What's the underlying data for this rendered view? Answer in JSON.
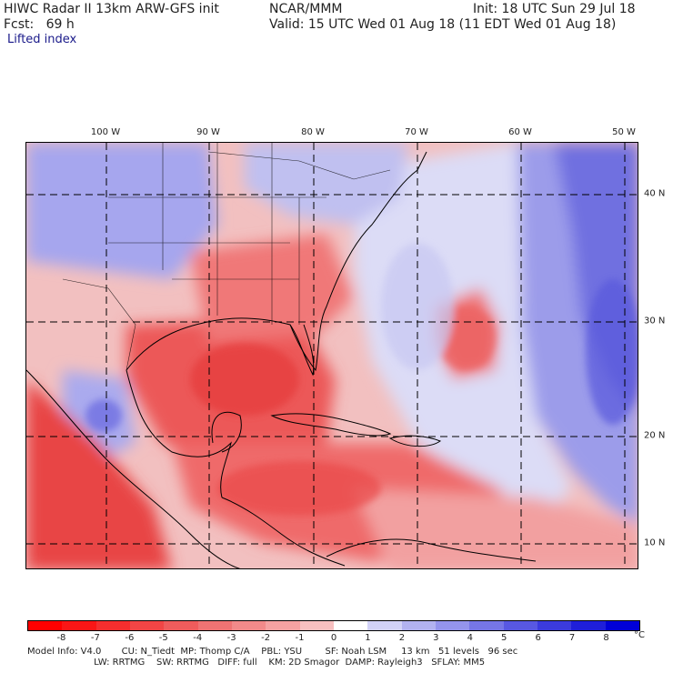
{
  "header": {
    "model_title": "HIWC Radar II 13km ARW-GFS init",
    "org": "NCAR/MMM",
    "init": "Init: 18 UTC Sun 29 Jul 18",
    "forecast": "Fcst:   69 h",
    "valid": "Valid: 15 UTC Wed 01 Aug 18 (11 EDT Wed 01 Aug 18)",
    "field": "Lifted index"
  },
  "map": {
    "lon_labels": [
      "100 W",
      "90 W",
      "80 W",
      "70 W",
      "60 W",
      "50 W"
    ],
    "lat_labels": [
      "40 N",
      "30 N",
      "20 N",
      "10 N"
    ]
  },
  "colorbar": {
    "ticks": [
      "-8",
      "-7",
      "-6",
      "-5",
      "-4",
      "-3",
      "-2",
      "-1",
      "0",
      "1",
      "2",
      "3",
      "4",
      "5",
      "6",
      "7",
      "8"
    ],
    "unit": "°C",
    "colors": [
      "#ff0000",
      "#fa1616",
      "#f52e2e",
      "#f24545",
      "#ef5c5c",
      "#ef7373",
      "#f28a8a",
      "#f5a2a2",
      "#f8c0c0",
      "#ffffff",
      "#d2d2f7",
      "#b2b2f0",
      "#9494ec",
      "#7676e6",
      "#5858e2",
      "#3b3bde",
      "#1f1fda",
      "#0000d8"
    ]
  },
  "footer": {
    "line1": "Model Info: V4.0       CU: N_Tiedt  MP: Thomp C/A    PBL: YSU        SF: Noah LSM     13 km   51 levels   96 sec",
    "line2": "                       LW: RRTMG    SW: RRTMG   DIFF: full    KM: 2D Smagor  DAMP: Rayleigh3   SFLAY: MM5"
  }
}
